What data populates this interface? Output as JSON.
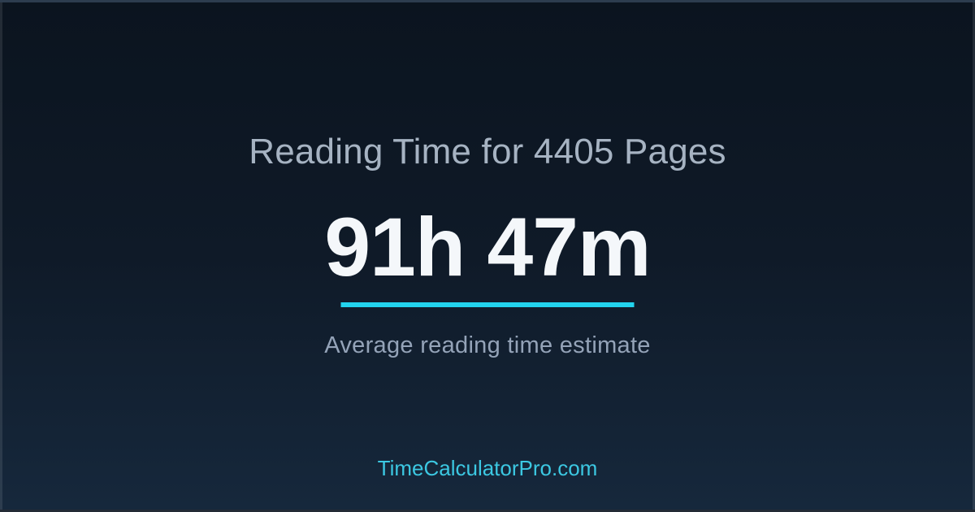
{
  "card": {
    "title": "Reading Time for 4405 Pages",
    "value": "91h 47m",
    "subtitle": "Average reading time estimate",
    "footer_link": "TimeCalculatorPro.com"
  },
  "colors": {
    "background_top": "#0b141f",
    "background_mid": "#0f1a28",
    "background_bottom": "#16283c",
    "title": "#a6b3c2",
    "value": "#f4f7fa",
    "accent_underline": "#22d3ee",
    "subtitle": "#94a3b8",
    "footer_link": "#3cc8e2"
  }
}
